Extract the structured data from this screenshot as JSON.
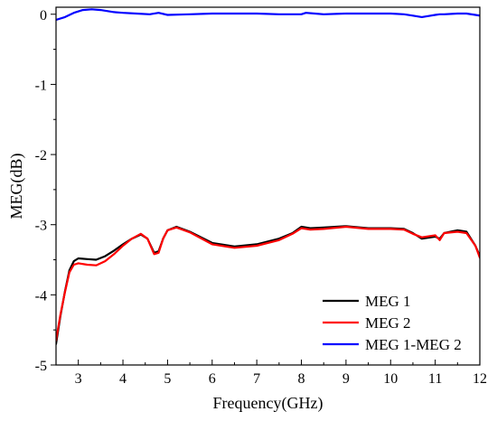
{
  "chart_data": {
    "type": "line",
    "title": "",
    "xlabel": "Frequency(GHz)",
    "ylabel": "MEG(dB)",
    "xlim": [
      2.5,
      12
    ],
    "ylim": [
      -5,
      0.1
    ],
    "xticks": [
      3,
      4,
      5,
      6,
      7,
      8,
      9,
      10,
      11,
      12
    ],
    "xtick_labels": [
      "3",
      "4",
      "5",
      "6",
      "7",
      "8",
      "9",
      "10",
      "11",
      "12"
    ],
    "yticks": [
      0,
      -1,
      -2,
      -3,
      -4,
      -5
    ],
    "ytick_labels": [
      "0",
      "-1",
      "-2",
      "-3",
      "-4",
      "-5"
    ],
    "grid": false,
    "legend_position": "bottom-right",
    "series": [
      {
        "name": "MEG 1",
        "color": "#000000",
        "points": [
          [
            2.5,
            -4.7
          ],
          [
            2.6,
            -4.3
          ],
          [
            2.7,
            -3.95
          ],
          [
            2.8,
            -3.65
          ],
          [
            2.9,
            -3.52
          ],
          [
            3.0,
            -3.48
          ],
          [
            3.2,
            -3.49
          ],
          [
            3.4,
            -3.5
          ],
          [
            3.6,
            -3.45
          ],
          [
            3.8,
            -3.37
          ],
          [
            4.0,
            -3.28
          ],
          [
            4.2,
            -3.2
          ],
          [
            4.4,
            -3.14
          ],
          [
            4.55,
            -3.2
          ],
          [
            4.7,
            -3.4
          ],
          [
            4.8,
            -3.38
          ],
          [
            4.9,
            -3.2
          ],
          [
            5.0,
            -3.08
          ],
          [
            5.2,
            -3.03
          ],
          [
            5.5,
            -3.1
          ],
          [
            6.0,
            -3.26
          ],
          [
            6.5,
            -3.31
          ],
          [
            7.0,
            -3.28
          ],
          [
            7.5,
            -3.2
          ],
          [
            7.8,
            -3.12
          ],
          [
            8.0,
            -3.03
          ],
          [
            8.2,
            -3.05
          ],
          [
            8.5,
            -3.04
          ],
          [
            9.0,
            -3.02
          ],
          [
            9.5,
            -3.05
          ],
          [
            10.0,
            -3.05
          ],
          [
            10.3,
            -3.06
          ],
          [
            10.5,
            -3.12
          ],
          [
            10.7,
            -3.2
          ],
          [
            11.0,
            -3.17
          ],
          [
            11.1,
            -3.2
          ],
          [
            11.2,
            -3.12
          ],
          [
            11.5,
            -3.08
          ],
          [
            11.7,
            -3.1
          ],
          [
            11.9,
            -3.3
          ],
          [
            12.0,
            -3.45
          ]
        ]
      },
      {
        "name": "MEG 2",
        "color": "#ff0000",
        "points": [
          [
            2.5,
            -4.65
          ],
          [
            2.6,
            -4.28
          ],
          [
            2.7,
            -3.96
          ],
          [
            2.8,
            -3.68
          ],
          [
            2.9,
            -3.57
          ],
          [
            3.0,
            -3.55
          ],
          [
            3.2,
            -3.57
          ],
          [
            3.4,
            -3.58
          ],
          [
            3.6,
            -3.52
          ],
          [
            3.8,
            -3.42
          ],
          [
            4.0,
            -3.3
          ],
          [
            4.2,
            -3.2
          ],
          [
            4.4,
            -3.13
          ],
          [
            4.55,
            -3.2
          ],
          [
            4.7,
            -3.42
          ],
          [
            4.8,
            -3.4
          ],
          [
            4.9,
            -3.2
          ],
          [
            5.0,
            -3.08
          ],
          [
            5.2,
            -3.04
          ],
          [
            5.5,
            -3.11
          ],
          [
            6.0,
            -3.28
          ],
          [
            6.5,
            -3.33
          ],
          [
            7.0,
            -3.3
          ],
          [
            7.5,
            -3.22
          ],
          [
            7.8,
            -3.13
          ],
          [
            8.0,
            -3.05
          ],
          [
            8.2,
            -3.07
          ],
          [
            8.5,
            -3.06
          ],
          [
            9.0,
            -3.03
          ],
          [
            9.5,
            -3.06
          ],
          [
            10.0,
            -3.06
          ],
          [
            10.3,
            -3.07
          ],
          [
            10.5,
            -3.13
          ],
          [
            10.7,
            -3.18
          ],
          [
            11.0,
            -3.15
          ],
          [
            11.1,
            -3.22
          ],
          [
            11.2,
            -3.12
          ],
          [
            11.5,
            -3.1
          ],
          [
            11.7,
            -3.12
          ],
          [
            11.9,
            -3.3
          ],
          [
            12.0,
            -3.47
          ]
        ]
      },
      {
        "name": "MEG 1-MEG 2",
        "color": "#0000ff",
        "points": [
          [
            2.5,
            -0.08
          ],
          [
            2.7,
            -0.04
          ],
          [
            2.9,
            0.02
          ],
          [
            3.1,
            0.06
          ],
          [
            3.3,
            0.07
          ],
          [
            3.5,
            0.06
          ],
          [
            3.8,
            0.03
          ],
          [
            4.0,
            0.02
          ],
          [
            4.3,
            0.01
          ],
          [
            4.6,
            0.0
          ],
          [
            4.8,
            0.02
          ],
          [
            5.0,
            -0.01
          ],
          [
            5.5,
            0.0
          ],
          [
            6.0,
            0.01
          ],
          [
            6.5,
            0.01
          ],
          [
            7.0,
            0.01
          ],
          [
            7.5,
            0.0
          ],
          [
            8.0,
            0.0
          ],
          [
            8.1,
            0.02
          ],
          [
            8.3,
            0.01
          ],
          [
            8.5,
            0.0
          ],
          [
            9.0,
            0.01
          ],
          [
            9.5,
            0.01
          ],
          [
            10.0,
            0.01
          ],
          [
            10.3,
            0.0
          ],
          [
            10.5,
            -0.02
          ],
          [
            10.7,
            -0.04
          ],
          [
            10.9,
            -0.02
          ],
          [
            11.0,
            -0.01
          ],
          [
            11.1,
            0.0
          ],
          [
            11.2,
            0.0
          ],
          [
            11.5,
            0.01
          ],
          [
            11.7,
            0.01
          ],
          [
            11.9,
            -0.01
          ],
          [
            12.0,
            -0.02
          ]
        ]
      }
    ]
  }
}
